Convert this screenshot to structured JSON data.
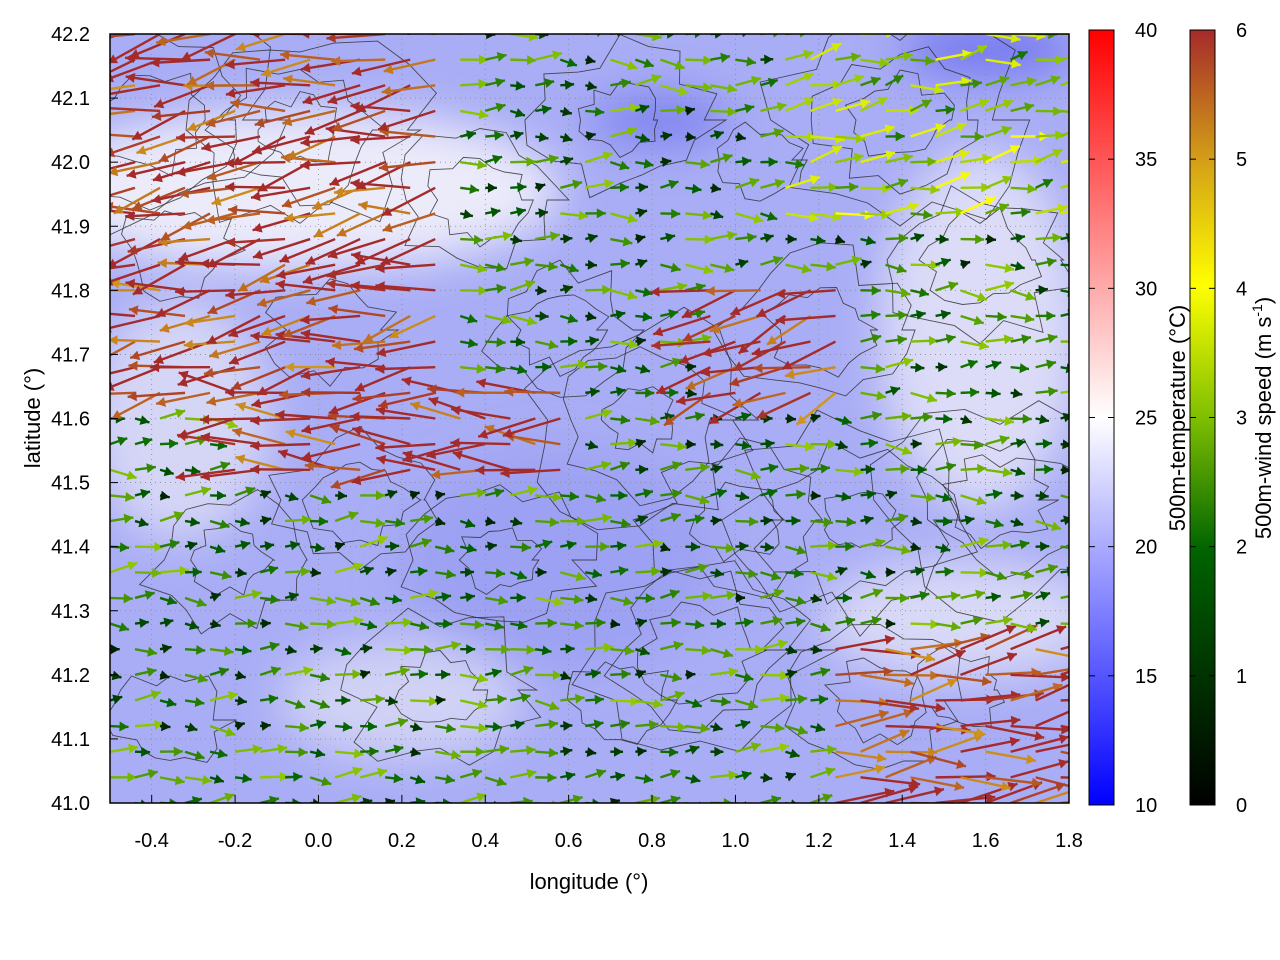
{
  "chart_data": {
    "type": "heatmap",
    "subtype": "wind-vector-field-over-temperature-map-with-contours",
    "xlabel": "longitude (°)",
    "ylabel": "latitude (°)",
    "xlim": [
      -0.5,
      1.8
    ],
    "ylim": [
      41.0,
      42.2
    ],
    "x_ticks": [
      "-0.4",
      "-0.2",
      "0.0",
      "0.2",
      "0.4",
      "0.6",
      "0.8",
      "1.0",
      "1.2",
      "1.4",
      "1.6",
      "1.8"
    ],
    "y_ticks": [
      "41.0",
      "41.1",
      "41.2",
      "41.3",
      "41.4",
      "41.5",
      "41.6",
      "41.7",
      "41.8",
      "41.9",
      "42.0",
      "42.1",
      "42.2"
    ],
    "grid": true,
    "temperature_colorbar": {
      "label": "500m-temperature (°C)",
      "range": [
        10,
        40
      ],
      "ticks": [
        "10",
        "15",
        "20",
        "25",
        "30",
        "35",
        "40"
      ],
      "colors": [
        "#0000ff",
        "#ffffff",
        "#ff0000"
      ]
    },
    "wind_colorbar": {
      "label_main": "500m-wind speed (m s",
      "label_sup": "-1",
      "label_end": ")",
      "range": [
        0,
        6
      ],
      "ticks": [
        "0",
        "1",
        "2",
        "3",
        "4",
        "5",
        "6"
      ],
      "colors": [
        "#000000",
        "#006400",
        "#7fbf00",
        "#ffff00",
        "#d4a017",
        "#a52a2a"
      ]
    },
    "temperature_field_description": "mostly 17-22 °C over the domain; coolest (about 15 °C) near 1.5-1.8°E, 42.15-42.2°N and 0.7-0.9°E, 42.05-42.1°N; warmest (about 24-25 °C) in the band 41.85-42.05°N west of 0.6°E",
    "wind_regions": [
      {
        "region": "west and north-west, 41.6-42.2°N, -0.5-0.3°E",
        "speed": 6,
        "direction_deg": 190
      },
      {
        "region": "jet along 41.5-41.65°N, -0.2-0.6°E",
        "speed": 6,
        "direction_deg": 180
      },
      {
        "region": "central plain, 41.2-41.5°N, 0.4-1.3°E",
        "speed": 1.5,
        "direction_deg": 0
      },
      {
        "region": "south-east, 41.0-41.25°N, 1.2-1.8°E",
        "speed": 6,
        "direction_deg": 5
      },
      {
        "region": "east-centre, 41.6-41.8°N, 0.9-1.3°E",
        "speed": 6,
        "direction_deg": 200
      },
      {
        "region": "north-east, 41.9-42.2°N, 1.1-1.8°E",
        "speed": 2.5,
        "direction_deg": 10
      }
    ]
  }
}
